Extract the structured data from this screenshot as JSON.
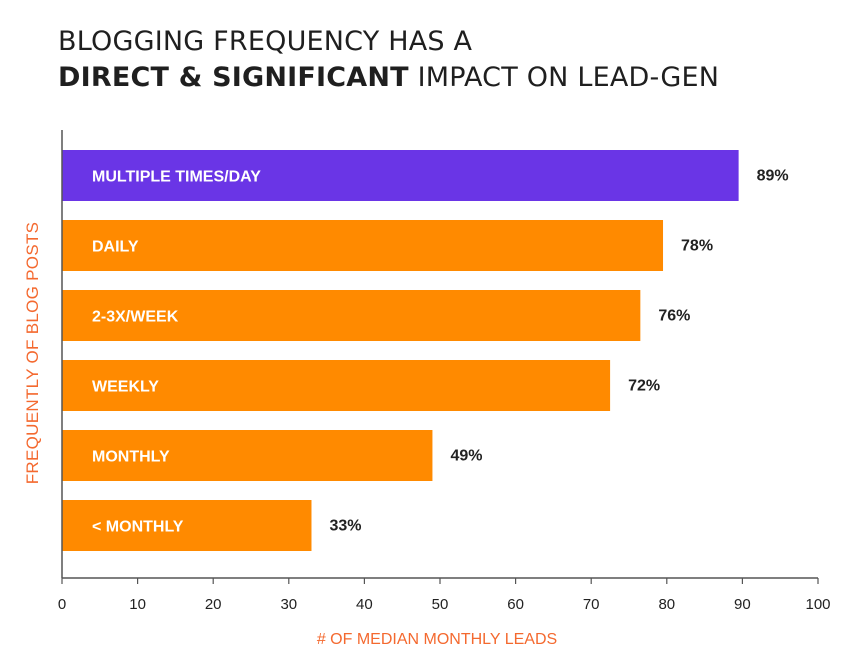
{
  "title": {
    "line1": "BLOGGING FREQUENCY HAS A",
    "line2_bold": "DIRECT & SIGNIFICANT",
    "line2_rest": " IMPACT ON LEAD-GEN"
  },
  "colors": {
    "highlight": "#6a35e6",
    "bar": "#ff8a00",
    "axis_label": "#f4692f",
    "text": "#222222",
    "axis": "#555555"
  },
  "chart_data": {
    "type": "bar",
    "orientation": "horizontal",
    "categories": [
      "MULTIPLE TIMES/DAY",
      "DAILY",
      "2-3X/WEEK",
      "WEEKLY",
      "MONTHLY",
      "< MONTHLY"
    ],
    "values": [
      89,
      78,
      76,
      72,
      49,
      33
    ],
    "value_labels": [
      "89%",
      "78%",
      "76%",
      "72%",
      "49%",
      "33%"
    ],
    "bar_lengths": [
      89.5,
      79.5,
      76.5,
      72.5,
      49,
      33
    ],
    "highlight_index": 0,
    "xlabel": "# OF MEDIAN MONTHLY LEADS",
    "ylabel": "FREQUENTLY OF BLOG POSTS",
    "xlim": [
      0,
      100
    ],
    "xticks": [
      0,
      10,
      20,
      30,
      40,
      50,
      60,
      70,
      80,
      90,
      100
    ],
    "grid": false
  }
}
